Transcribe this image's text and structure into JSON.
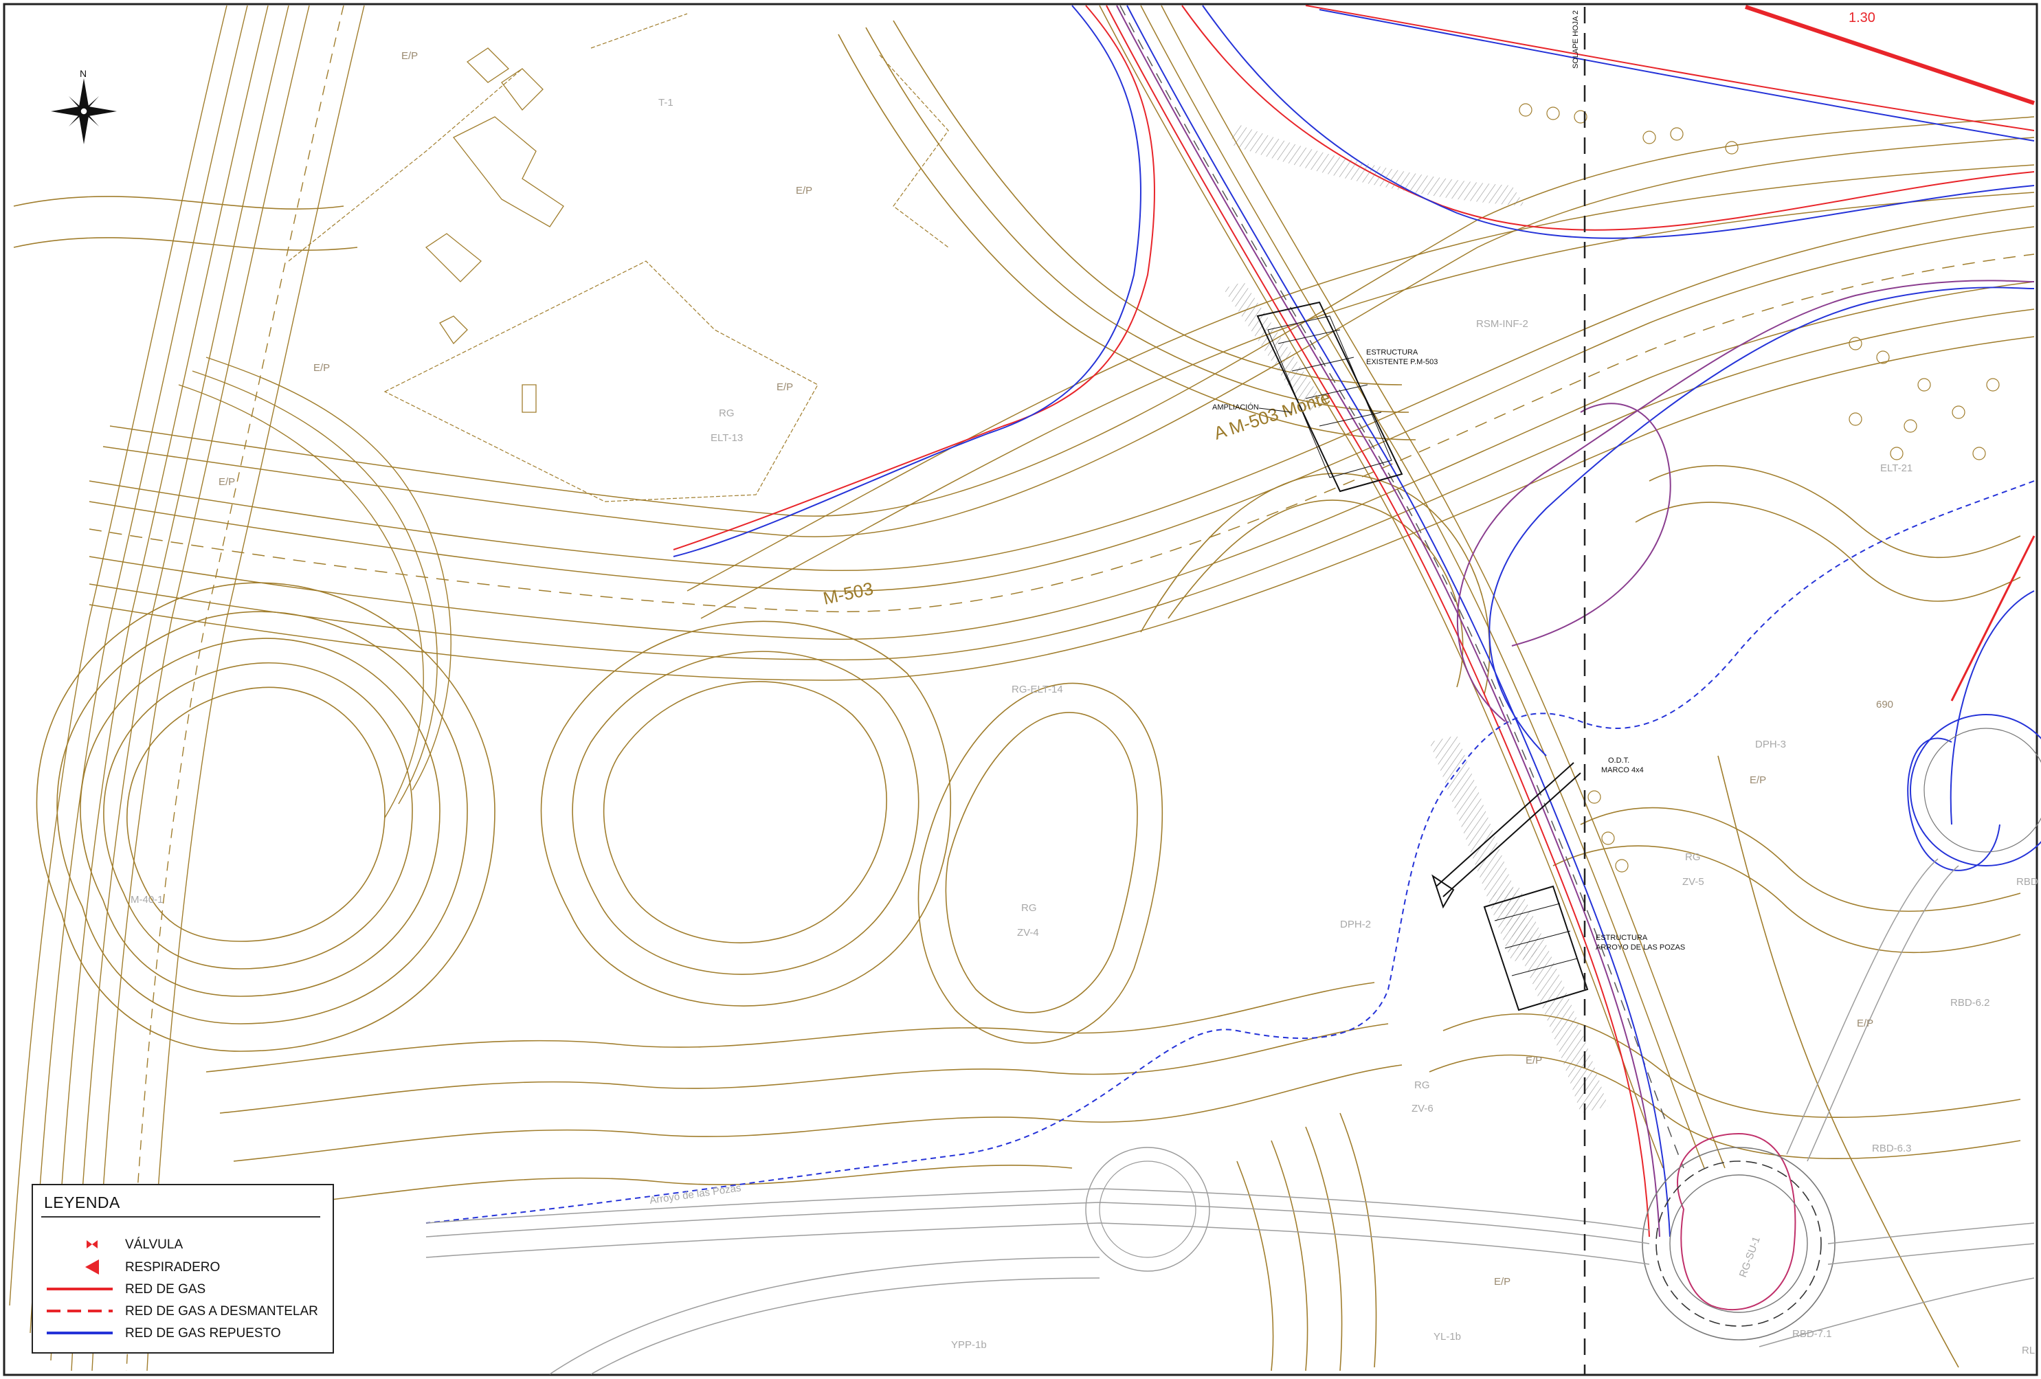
{
  "north": {
    "label": "N"
  },
  "sheet": {
    "match_line": "SOLAPE HOJA 2",
    "dim_label": "1.30"
  },
  "road_labels": {
    "m503": "M-503",
    "ramp": "A M-503 Monte"
  },
  "zones": [
    {
      "id": "ep1",
      "text": "E/P"
    },
    {
      "id": "t1",
      "text": "T-1"
    },
    {
      "id": "ep2",
      "text": "E/P"
    },
    {
      "id": "ep3",
      "text": "E/P"
    },
    {
      "id": "ep4",
      "text": "E/P"
    },
    {
      "id": "rg1",
      "text": "RG"
    },
    {
      "id": "elt13",
      "text": "ELT-13"
    },
    {
      "id": "ep5",
      "text": "E/P"
    },
    {
      "id": "rsminf2",
      "text": "RSM-INF-2"
    },
    {
      "id": "elt21",
      "text": "ELT-21"
    },
    {
      "id": "rgelt14",
      "text": "RG-ELT-14"
    },
    {
      "id": "dph3",
      "text": "DPH-3"
    },
    {
      "id": "ep6",
      "text": "E/P"
    },
    {
      "id": "rg2",
      "text": "RG"
    },
    {
      "id": "zv5",
      "text": "ZV-5"
    },
    {
      "id": "m40",
      "text": "M-40-1"
    },
    {
      "id": "rg3",
      "text": "RG"
    },
    {
      "id": "zv4",
      "text": "ZV-4"
    },
    {
      "id": "dph2",
      "text": "DPH-2"
    },
    {
      "id": "rbd",
      "text": "RBD"
    },
    {
      "id": "rbd62",
      "text": "RBD-6.2"
    },
    {
      "id": "ep7",
      "text": "E/P"
    },
    {
      "id": "rg4",
      "text": "RG"
    },
    {
      "id": "zv6",
      "text": "ZV-6"
    },
    {
      "id": "rbd63",
      "text": "RBD-6.3"
    },
    {
      "id": "arroyo",
      "text": "Arroyo de las Pozas"
    },
    {
      "id": "rgsup",
      "text": "RG-SU-1"
    },
    {
      "id": "ep8",
      "text": "E/P"
    },
    {
      "id": "ypp1b",
      "text": "YPP-1b"
    },
    {
      "id": "yl1b",
      "text": "YL-1b"
    },
    {
      "id": "rbd71",
      "text": "RBD-7.1"
    },
    {
      "id": "rl",
      "text": "RL"
    },
    {
      "id": "c690",
      "text": "690"
    },
    {
      "id": "ep9",
      "text": "E/P"
    }
  ],
  "structures": {
    "existing_l1": "ESTRUCTURA",
    "existing_l2": "EXISTENTE P.M-503",
    "ampliacion": "AMPLIACIÓN",
    "odt_l1": "O.D.T.",
    "odt_l2": "MARCO 4x4",
    "pozas_l1": "ESTRUCTURA",
    "pozas_l2": "ARROYO DE LAS POZAS"
  },
  "legend": {
    "title": "LEYENDA",
    "items": [
      {
        "symbol": "valve",
        "label": "VÁLVULA"
      },
      {
        "symbol": "vent",
        "label": "RESPIRADERO"
      },
      {
        "symbol": "solid-red",
        "label": "RED DE GAS"
      },
      {
        "symbol": "dashed-red",
        "label": "RED DE GAS A DESMANTELAR"
      },
      {
        "symbol": "solid-blue",
        "label": "RED DE GAS REPUESTO"
      }
    ]
  },
  "colors": {
    "contour": "#a07d2c",
    "gas": "#e8252a",
    "gas_replaced": "#2533d8",
    "purple": "#8a3d8f",
    "grey": "#9c9c9c",
    "structure": "#111111"
  }
}
